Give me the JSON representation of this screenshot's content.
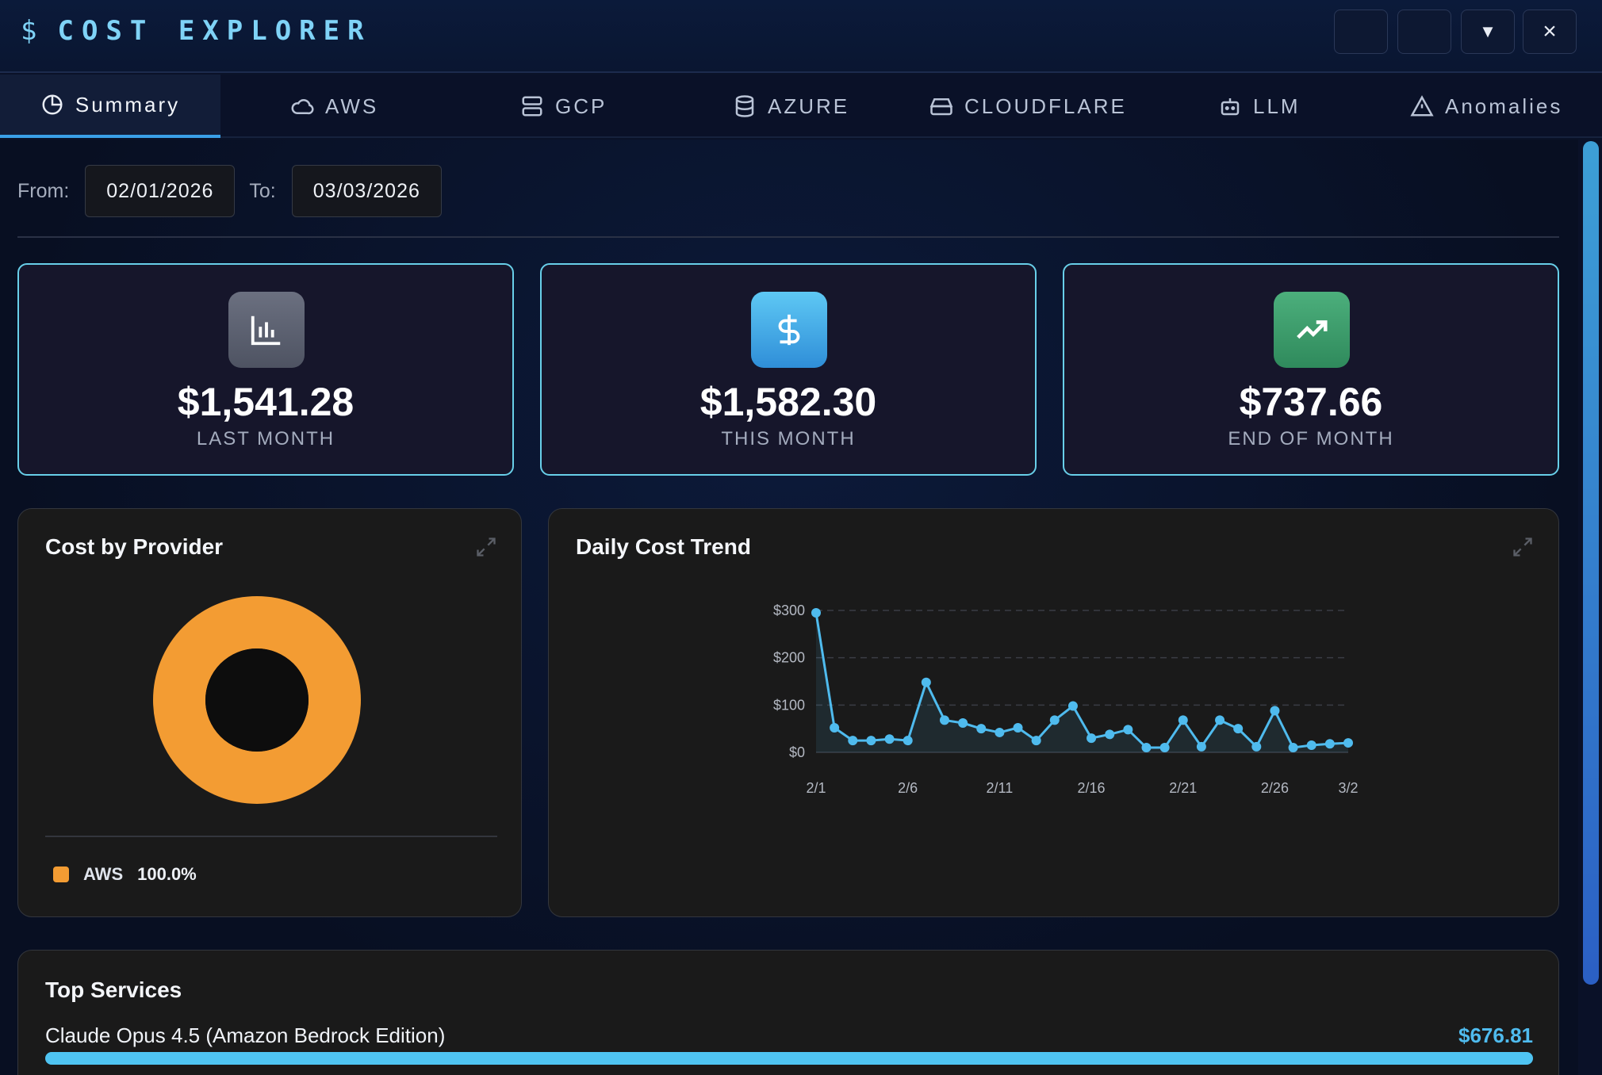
{
  "app": {
    "icon": "dollar-icon",
    "title": "COST EXPLORER"
  },
  "window_buttons": [
    {
      "name": "blank-button-1",
      "icon": ""
    },
    {
      "name": "blank-button-2",
      "icon": ""
    },
    {
      "name": "dropdown-button",
      "icon": "▼"
    },
    {
      "name": "close-button",
      "icon": "×"
    }
  ],
  "tabs": [
    {
      "label": "Summary",
      "icon": "pie-chart-icon",
      "active": true
    },
    {
      "label": "AWS",
      "icon": "cloud-icon",
      "active": false
    },
    {
      "label": "GCP",
      "icon": "server-icon",
      "active": false
    },
    {
      "label": "AZURE",
      "icon": "database-icon",
      "active": false
    },
    {
      "label": "CLOUDFLARE",
      "icon": "hard-drive-icon",
      "active": false
    },
    {
      "label": "LLM",
      "icon": "robot-icon",
      "active": false
    },
    {
      "label": "Anomalies",
      "icon": "warning-icon",
      "active": false
    }
  ],
  "date_range": {
    "from_label": "From:",
    "from_value": "02/01/2026",
    "to_label": "To:",
    "to_value": "03/03/2026"
  },
  "kpis": [
    {
      "value": "$1,541.28",
      "label": "LAST MONTH",
      "icon": "bar-chart-icon",
      "color": "#5b6170"
    },
    {
      "value": "$1,582.30",
      "label": "THIS MONTH",
      "icon": "dollar-icon",
      "color": "#3aa0e8"
    },
    {
      "value": "$737.66",
      "label": "END OF MONTH",
      "icon": "trending-up-icon",
      "color": "#3d9a6a"
    }
  ],
  "cost_by_provider": {
    "title": "Cost by Provider",
    "legend": [
      {
        "name": "AWS",
        "pct": "100.0%",
        "color": "#f39c33"
      }
    ]
  },
  "daily_trend": {
    "title": "Daily Cost Trend"
  },
  "chart_data": [
    {
      "type": "pie",
      "title": "Cost by Provider",
      "categories": [
        "AWS"
      ],
      "values": [
        100.0
      ],
      "colors": [
        "#f39c33"
      ]
    },
    {
      "type": "line",
      "title": "Daily Cost Trend",
      "x": [
        "2/1",
        "2/2",
        "2/3",
        "2/4",
        "2/5",
        "2/6",
        "2/7",
        "2/8",
        "2/9",
        "2/10",
        "2/11",
        "2/12",
        "2/13",
        "2/14",
        "2/15",
        "2/16",
        "2/17",
        "2/18",
        "2/19",
        "2/20",
        "2/21",
        "2/22",
        "2/23",
        "2/24",
        "2/25",
        "2/26",
        "2/27",
        "2/28",
        "3/1",
        "3/2"
      ],
      "x_tick_labels": [
        "2/1",
        "2/6",
        "2/11",
        "2/16",
        "2/21",
        "2/26",
        "3/2"
      ],
      "series": [
        {
          "values": [
            295,
            52,
            25,
            25,
            28,
            25,
            148,
            68,
            62,
            50,
            42,
            52,
            25,
            68,
            98,
            30,
            38,
            48,
            10,
            10,
            68,
            12,
            68,
            50,
            12,
            88,
            10,
            15,
            18,
            20
          ]
        }
      ],
      "ylim": [
        0,
        300
      ],
      "y_tick_labels": [
        "$0",
        "$100",
        "$200",
        "$300"
      ],
      "y_ticks": [
        0,
        100,
        200,
        300
      ],
      "grid": true,
      "color": "#4fbbee"
    }
  ],
  "top_services": {
    "title": "Top Services",
    "items": [
      {
        "name": "Claude Opus 4.5 (Amazon Bedrock Edition)",
        "cost": "$676.81",
        "share": 1.0
      }
    ]
  }
}
